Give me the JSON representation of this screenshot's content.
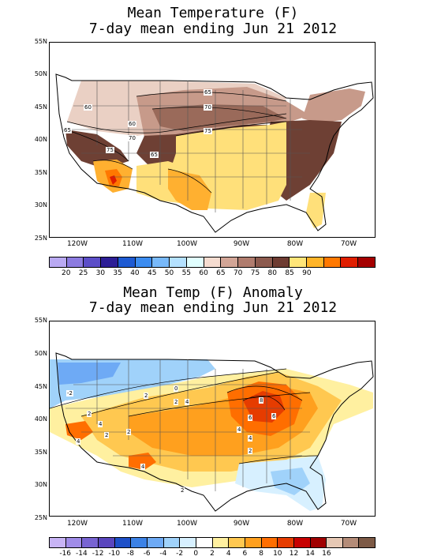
{
  "map1": {
    "title_line1": "Mean Temperature (F)",
    "title_line2": "7-day mean ending Jun 21 2012",
    "lat_labels": [
      "55N",
      "50N",
      "45N",
      "40N",
      "35N",
      "30N",
      "25N"
    ],
    "lon_labels": [
      "120W",
      "110W",
      "100W",
      "90W",
      "80W",
      "70W"
    ],
    "contour_labels": [
      "60",
      "65",
      "70",
      "65",
      "60",
      "70",
      "75",
      "75",
      "65"
    ],
    "legend_values": [
      "20",
      "25",
      "30",
      "35",
      "40",
      "45",
      "50",
      "55",
      "60",
      "65",
      "70",
      "75",
      "80",
      "85",
      "90"
    ],
    "legend_colors": [
      "#b9a9f2",
      "#8c7be0",
      "#5c4ec8",
      "#2d1e96",
      "#1e5ad2",
      "#3c8cf0",
      "#78b9fa",
      "#b4e1ff",
      "#e1ffff",
      "#f5dcd0",
      "#d2a596",
      "#b07c6e",
      "#8c5a4e",
      "#6e3c32",
      "#ffe578",
      "#ffb428",
      "#ff7800",
      "#e01e00",
      "#a50000"
    ]
  },
  "map2": {
    "title_line1": "Mean Temp (F) Anomaly",
    "title_line2": "7-day mean ending Jun 21 2012",
    "lat_labels": [
      "55N",
      "50N",
      "45N",
      "40N",
      "35N",
      "30N",
      "25N"
    ],
    "lon_labels": [
      "120W",
      "110W",
      "100W",
      "90W",
      "80W",
      "70W"
    ],
    "contour_labels": [
      "-2",
      "2",
      "2",
      "4",
      "4",
      "2",
      "0",
      "2",
      "4",
      "8",
      "6",
      "6",
      "4",
      "2",
      "2",
      "4",
      "4",
      "2"
    ],
    "legend_values": [
      "-16",
      "-14",
      "-12",
      "-10",
      "-8",
      "-6",
      "-4",
      "-2",
      "0",
      "2",
      "4",
      "6",
      "8",
      "10",
      "12",
      "14",
      "16"
    ],
    "legend_colors": [
      "#c8b4f5",
      "#a08ce8",
      "#7864d2",
      "#5a46be",
      "#1e50c8",
      "#3c82e6",
      "#6eaaf5",
      "#a0d2fa",
      "#d7f0ff",
      "#ffffff",
      "#fff0a0",
      "#ffc850",
      "#ffa01e",
      "#ff6e00",
      "#e63c00",
      "#c80000",
      "#a00000",
      "#e6c8b4",
      "#b48c78",
      "#7d5a46"
    ]
  }
}
